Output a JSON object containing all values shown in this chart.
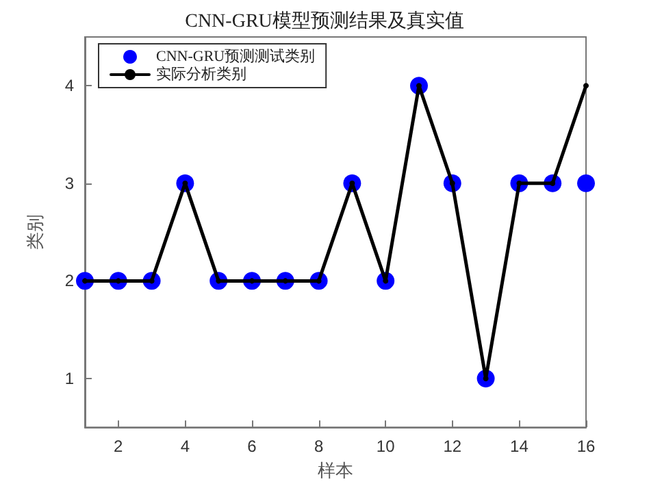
{
  "chart_data": {
    "type": "scatter",
    "title": "CNN-GRU模型预测结果及真实值",
    "xlabel": "样本",
    "ylabel": "类别",
    "x": [
      1,
      2,
      3,
      4,
      5,
      6,
      7,
      8,
      9,
      10,
      11,
      12,
      13,
      14,
      15,
      16
    ],
    "series": [
      {
        "name": "CNN-GRU预测测试类别",
        "type": "scatter",
        "color": "#0000ff",
        "values": [
          2,
          2,
          2,
          3,
          2,
          2,
          2,
          2,
          3,
          2,
          4,
          3,
          1,
          3,
          3,
          3
        ]
      },
      {
        "name": "实际分析类别",
        "type": "line",
        "color": "#000000",
        "values": [
          2,
          2,
          2,
          3,
          2,
          2,
          2,
          2,
          3,
          2,
          4,
          3,
          1,
          3,
          3,
          4
        ]
      }
    ],
    "xlim": [
      1,
      16
    ],
    "xticks": [
      2,
      4,
      6,
      8,
      10,
      12,
      14,
      16
    ],
    "ylim": [
      0.5,
      4.5
    ],
    "yticks": [
      1,
      2,
      3,
      4
    ],
    "grid": false,
    "legend": "top left",
    "marker": "circle",
    "line_style": "solid"
  }
}
